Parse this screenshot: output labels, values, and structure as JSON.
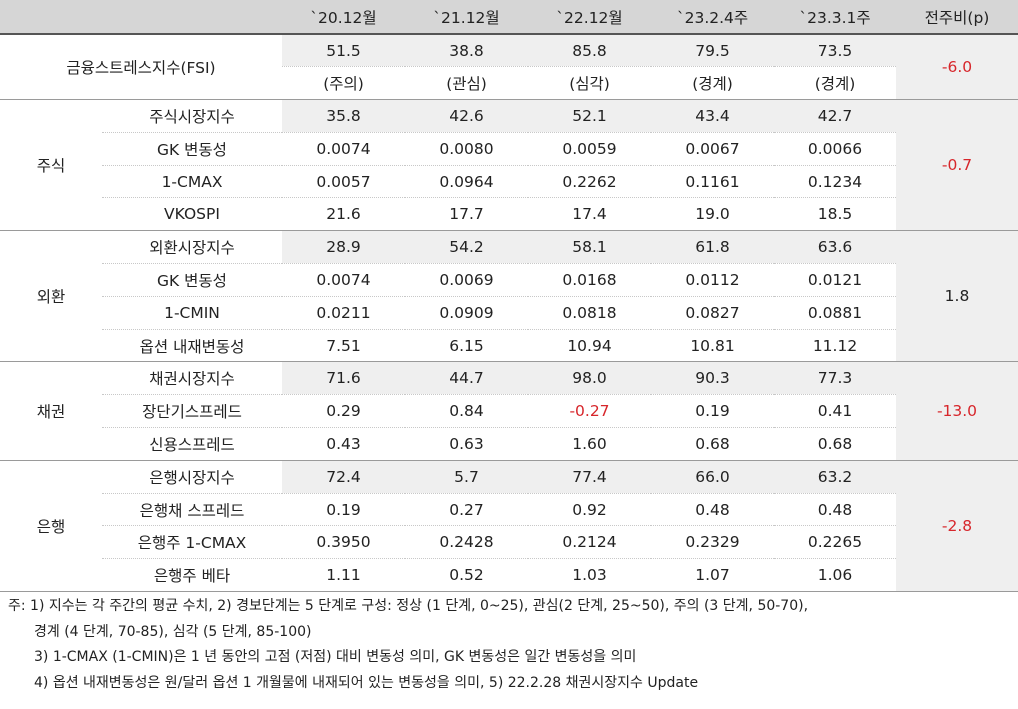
{
  "headers": [
    "",
    "`20.12월",
    "`21.12월",
    "`22.12월",
    "`23.2.4주",
    "`23.3.1주",
    "전주비(p)"
  ],
  "fsi": {
    "label": "금융스트레스지수(FSI)",
    "values": [
      "51.5",
      "38.8",
      "85.8",
      "79.5",
      "73.5"
    ],
    "levels": [
      "(주의)",
      "(관심)",
      "(심각)",
      "(경계)",
      "(경계)"
    ],
    "change": "-6.0"
  },
  "groups": [
    {
      "label": "주식",
      "change": "-0.7",
      "rows": [
        {
          "name": "주식시장지수",
          "values": [
            "35.8",
            "42.6",
            "52.1",
            "43.4",
            "42.7"
          ]
        },
        {
          "name": "GK 변동성",
          "values": [
            "0.0074",
            "0.0080",
            "0.0059",
            "0.0067",
            "0.0066"
          ]
        },
        {
          "name": "1-CMAX",
          "values": [
            "0.0057",
            "0.0964",
            "0.2262",
            "0.1161",
            "0.1234"
          ]
        },
        {
          "name": "VKOSPI",
          "values": [
            "21.6",
            "17.7",
            "17.4",
            "19.0",
            "18.5"
          ]
        }
      ]
    },
    {
      "label": "외환",
      "change": "1.8",
      "rows": [
        {
          "name": "외환시장지수",
          "values": [
            "28.9",
            "54.2",
            "58.1",
            "61.8",
            "63.6"
          ]
        },
        {
          "name": "GK 변동성",
          "values": [
            "0.0074",
            "0.0069",
            "0.0168",
            "0.0112",
            "0.0121"
          ]
        },
        {
          "name": "1-CMIN",
          "values": [
            "0.0211",
            "0.0909",
            "0.0818",
            "0.0827",
            "0.0881"
          ]
        },
        {
          "name": "옵션 내재변동성",
          "values": [
            "7.51",
            "6.15",
            "10.94",
            "10.81",
            "11.12"
          ]
        }
      ]
    },
    {
      "label": "채권",
      "change": "-13.0",
      "rows": [
        {
          "name": "채권시장지수",
          "values": [
            "71.6",
            "44.7",
            "98.0",
            "90.3",
            "77.3"
          ]
        },
        {
          "name": "장단기스프레드",
          "values": [
            "0.29",
            "0.84",
            "-0.27",
            "0.19",
            "0.41"
          ]
        },
        {
          "name": "신용스프레드",
          "values": [
            "0.43",
            "0.63",
            "1.60",
            "0.68",
            "0.68"
          ]
        }
      ]
    },
    {
      "label": "은행",
      "change": "-2.8",
      "rows": [
        {
          "name": "은행시장지수",
          "values": [
            "72.4",
            "5.7",
            "77.4",
            "66.0",
            "63.2"
          ]
        },
        {
          "name": "은행채 스프레드",
          "values": [
            "0.19",
            "0.27",
            "0.92",
            "0.48",
            "0.48"
          ]
        },
        {
          "name": "은행주 1-CMAX",
          "values": [
            "0.3950",
            "0.2428",
            "0.2124",
            "0.2329",
            "0.2265"
          ]
        },
        {
          "name": "은행주 베타",
          "values": [
            "1.11",
            "0.52",
            "1.03",
            "1.07",
            "1.06"
          ]
        }
      ]
    }
  ],
  "notes": [
    "주: 1) 지수는 각 주간의 평균 수치, 2) 경보단계는 5 단계로 구성: 정상 (1 단계, 0~25), 관심(2 단계, 25~50), 주의 (3 단계, 50-70),",
    "경계 (4 단계, 70-85), 심각 (5 단계, 85-100)",
    "3) 1-CMAX (1-CMIN)은 1 년 동안의 고점 (저점) 대비 변동성 의미, GK 변동성은 일간 변동성을 의미",
    "4) 옵션 내재변동성은 원/달러 옵션 1 개월물에 내재되어 있는 변동성을 의미, 5) 22.2.28 채권시장지수 Update"
  ],
  "colors": {
    "negative": "#d7262b",
    "header_bg": "#d6d6d6",
    "shade_bg": "#efefef"
  }
}
